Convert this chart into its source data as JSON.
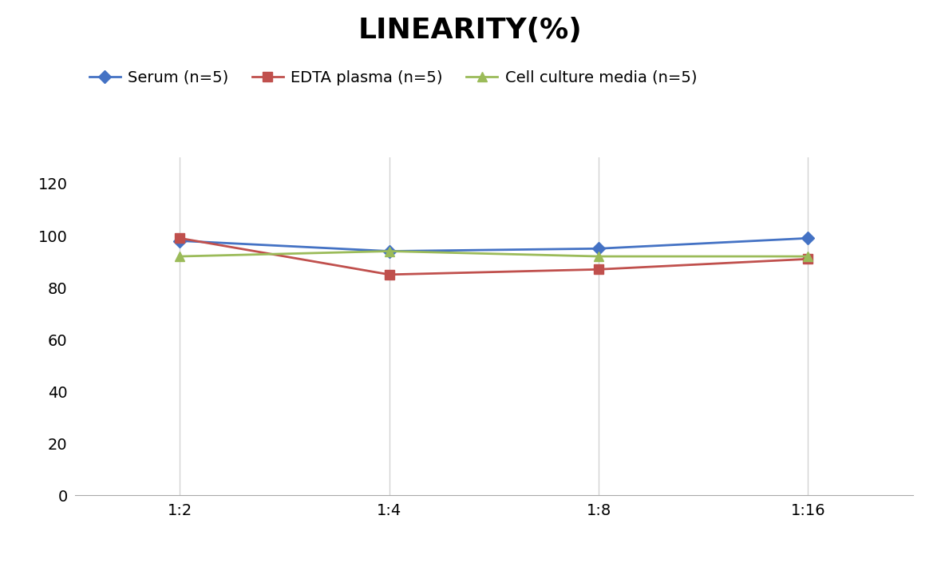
{
  "title": "LINEARITY(%)",
  "x_labels": [
    "1:2",
    "1:4",
    "1:8",
    "1:16"
  ],
  "series": [
    {
      "name": "Serum (n=5)",
      "values": [
        98,
        94,
        95,
        99
      ],
      "color": "#4472C4",
      "marker": "D",
      "markersize": 8
    },
    {
      "name": "EDTA plasma (n=5)",
      "values": [
        99,
        85,
        87,
        91
      ],
      "color": "#C0504D",
      "marker": "s",
      "markersize": 8
    },
    {
      "name": "Cell culture media (n=5)",
      "values": [
        92,
        94,
        92,
        92
      ],
      "color": "#9BBB59",
      "marker": "^",
      "markersize": 8
    }
  ],
  "ylim": [
    0,
    130
  ],
  "yticks": [
    0,
    20,
    40,
    60,
    80,
    100,
    120
  ],
  "background_color": "#FFFFFF",
  "grid_color": "#D3D3D3",
  "title_fontsize": 26,
  "legend_fontsize": 14,
  "tick_fontsize": 14
}
